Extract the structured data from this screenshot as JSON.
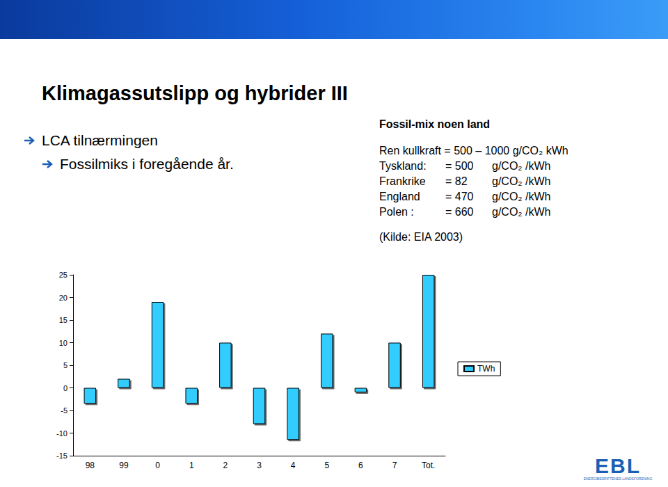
{
  "slide": {
    "title": "Klimagassutslipp og hybrider III",
    "bullets": [
      {
        "text": "LCA tilnærmingen",
        "sub": [
          {
            "text": "Fossilmiks i foregående år."
          }
        ]
      }
    ],
    "box": {
      "title": "Fossil-mix noen land",
      "intro": "Ren kullkraft = 500 – 1000 g/CO₂ kWh",
      "rows": [
        [
          "Tyskland:",
          "= 500",
          "g/CO₂ /kWh"
        ],
        [
          "Frankrike",
          "= 82",
          "g/CO₂ /kWh"
        ],
        [
          "England",
          "= 470",
          "g/CO₂ /kWh"
        ],
        [
          "Polen :",
          "= 660",
          "g/CO₂ /kWh"
        ]
      ],
      "source": "(Kilde: EIA 2003)"
    },
    "logo": {
      "text": "EBL",
      "subtitle": "ENERGIBEDRIFTENES LANDSFORENING"
    }
  },
  "chart_data": {
    "type": "bar",
    "categories": [
      "98",
      "99",
      "0",
      "1",
      "2",
      "3",
      "4",
      "5",
      "6",
      "7",
      "Tot."
    ],
    "series": [
      {
        "name": "TWh",
        "color": "#33ccff",
        "values": [
          -3.5,
          2,
          19,
          -3.5,
          10,
          -8,
          -11.5,
          12,
          -1,
          10,
          25
        ]
      }
    ],
    "ylim": [
      -15,
      25
    ],
    "yticks": [
      -15,
      -10,
      -5,
      0,
      5,
      10,
      15,
      20,
      25
    ],
    "grid": false,
    "legend": "right"
  }
}
